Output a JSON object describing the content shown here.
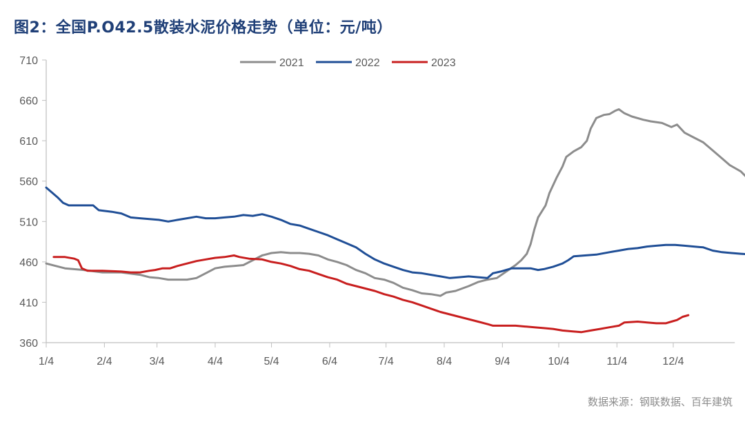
{
  "title": "图2：全国P.O42.5散装水泥价格走势（单位：元/吨）",
  "source": "数据来源：钢联数据、百年建筑",
  "colors": {
    "2021": "#8c8c8c",
    "2022": "#1f4e96",
    "2023": "#c81e1e",
    "axis": "#bfbfbf",
    "title": "#1f3f77"
  },
  "chart_data": {
    "type": "line",
    "title": "全国P.O42.5散装水泥价格走势（单位：元/吨）",
    "xlabel": "",
    "ylabel": "元/吨",
    "ylim": [
      360,
      710
    ],
    "yticks": [
      360,
      410,
      460,
      510,
      560,
      610,
      660,
      710
    ],
    "xticks": [
      {
        "label": "1/4",
        "day": 0
      },
      {
        "label": "2/4",
        "day": 31
      },
      {
        "label": "3/4",
        "day": 59
      },
      {
        "label": "4/4",
        "day": 90
      },
      {
        "label": "5/4",
        "day": 120
      },
      {
        "label": "6/4",
        "day": 151
      },
      {
        "label": "7/4",
        "day": 181
      },
      {
        "label": "8/4",
        "day": 212
      },
      {
        "label": "9/4",
        "day": 243
      },
      {
        "label": "10/4",
        "day": 273
      },
      {
        "label": "11/4",
        "day": 304
      },
      {
        "label": "12/4",
        "day": 334
      }
    ],
    "xmax_day": 362,
    "grid": false,
    "legend_position": "top-center",
    "series": [
      {
        "name": "2021",
        "points": [
          [
            0,
            458
          ],
          [
            5,
            455
          ],
          [
            10,
            452
          ],
          [
            20,
            450
          ],
          [
            30,
            447
          ],
          [
            40,
            447
          ],
          [
            50,
            444
          ],
          [
            55,
            441
          ],
          [
            60,
            440
          ],
          [
            65,
            438
          ],
          [
            75,
            438
          ],
          [
            80,
            440
          ],
          [
            85,
            446
          ],
          [
            90,
            452
          ],
          [
            95,
            454
          ],
          [
            100,
            455
          ],
          [
            105,
            456
          ],
          [
            110,
            462
          ],
          [
            115,
            468
          ],
          [
            120,
            471
          ],
          [
            125,
            472
          ],
          [
            130,
            471
          ],
          [
            135,
            471
          ],
          [
            140,
            470
          ],
          [
            145,
            468
          ],
          [
            150,
            463
          ],
          [
            155,
            460
          ],
          [
            160,
            456
          ],
          [
            165,
            450
          ],
          [
            170,
            446
          ],
          [
            175,
            440
          ],
          [
            180,
            438
          ],
          [
            185,
            434
          ],
          [
            190,
            428
          ],
          [
            195,
            425
          ],
          [
            200,
            421
          ],
          [
            205,
            420
          ],
          [
            210,
            418
          ],
          [
            213,
            422
          ],
          [
            218,
            424
          ],
          [
            225,
            430
          ],
          [
            230,
            435
          ],
          [
            235,
            438
          ],
          [
            240,
            440
          ],
          [
            245,
            448
          ],
          [
            250,
            456
          ],
          [
            253,
            462
          ],
          [
            256,
            470
          ],
          [
            258,
            482
          ],
          [
            260,
            500
          ],
          [
            262,
            515
          ],
          [
            266,
            530
          ],
          [
            268,
            545
          ],
          [
            272,
            565
          ],
          [
            275,
            578
          ],
          [
            277,
            590
          ],
          [
            281,
            597
          ],
          [
            285,
            602
          ],
          [
            288,
            610
          ],
          [
            290,
            625
          ],
          [
            293,
            638
          ],
          [
            297,
            642
          ],
          [
            300,
            643
          ],
          [
            303,
            647
          ],
          [
            305,
            649
          ],
          [
            308,
            644
          ],
          [
            312,
            640
          ],
          [
            318,
            636
          ],
          [
            322,
            634
          ],
          [
            328,
            632
          ],
          [
            333,
            627
          ],
          [
            336,
            630
          ],
          [
            340,
            620
          ],
          [
            345,
            614
          ],
          [
            350,
            608
          ],
          [
            353,
            602
          ],
          [
            356,
            596
          ],
          [
            360,
            588
          ],
          [
            364,
            580
          ],
          [
            367,
            576
          ],
          [
            370,
            572
          ],
          [
            373,
            565
          ],
          [
            376,
            558
          ]
        ]
      },
      {
        "name": "2022",
        "points": [
          [
            0,
            552
          ],
          [
            3,
            546
          ],
          [
            6,
            540
          ],
          [
            9,
            533
          ],
          [
            12,
            530
          ],
          [
            20,
            530
          ],
          [
            25,
            530
          ],
          [
            28,
            524
          ],
          [
            35,
            522
          ],
          [
            40,
            520
          ],
          [
            45,
            515
          ],
          [
            50,
            514
          ],
          [
            55,
            513
          ],
          [
            60,
            512
          ],
          [
            65,
            510
          ],
          [
            70,
            512
          ],
          [
            75,
            514
          ],
          [
            80,
            516
          ],
          [
            85,
            514
          ],
          [
            90,
            514
          ],
          [
            95,
            515
          ],
          [
            100,
            516
          ],
          [
            105,
            518
          ],
          [
            110,
            517
          ],
          [
            115,
            519
          ],
          [
            120,
            516
          ],
          [
            125,
            512
          ],
          [
            130,
            507
          ],
          [
            135,
            505
          ],
          [
            140,
            501
          ],
          [
            145,
            497
          ],
          [
            150,
            493
          ],
          [
            155,
            488
          ],
          [
            160,
            483
          ],
          [
            165,
            478
          ],
          [
            170,
            470
          ],
          [
            175,
            463
          ],
          [
            180,
            458
          ],
          [
            185,
            454
          ],
          [
            190,
            450
          ],
          [
            195,
            447
          ],
          [
            200,
            446
          ],
          [
            205,
            444
          ],
          [
            210,
            442
          ],
          [
            215,
            440
          ],
          [
            220,
            441
          ],
          [
            225,
            442
          ],
          [
            230,
            441
          ],
          [
            235,
            440
          ],
          [
            238,
            446
          ],
          [
            242,
            448
          ],
          [
            248,
            452
          ],
          [
            253,
            452
          ],
          [
            258,
            452
          ],
          [
            262,
            450
          ],
          [
            265,
            451
          ],
          [
            270,
            454
          ],
          [
            275,
            458
          ],
          [
            278,
            462
          ],
          [
            281,
            467
          ],
          [
            287,
            468
          ],
          [
            293,
            469
          ],
          [
            300,
            472
          ],
          [
            305,
            474
          ],
          [
            310,
            476
          ],
          [
            315,
            477
          ],
          [
            320,
            479
          ],
          [
            325,
            480
          ],
          [
            330,
            481
          ],
          [
            335,
            481
          ],
          [
            340,
            480
          ],
          [
            345,
            479
          ],
          [
            350,
            478
          ],
          [
            355,
            474
          ],
          [
            360,
            472
          ],
          [
            365,
            471
          ],
          [
            370,
            470
          ],
          [
            376,
            469
          ]
        ]
      },
      {
        "name": "2023",
        "points": [
          [
            4,
            466
          ],
          [
            10,
            466
          ],
          [
            15,
            464
          ],
          [
            17,
            462
          ],
          [
            19,
            452
          ],
          [
            22,
            449
          ],
          [
            30,
            449
          ],
          [
            40,
            448
          ],
          [
            45,
            447
          ],
          [
            50,
            447
          ],
          [
            55,
            449
          ],
          [
            58,
            450
          ],
          [
            62,
            452
          ],
          [
            66,
            452
          ],
          [
            70,
            455
          ],
          [
            75,
            458
          ],
          [
            80,
            461
          ],
          [
            85,
            463
          ],
          [
            90,
            465
          ],
          [
            95,
            466
          ],
          [
            100,
            468
          ],
          [
            103,
            466
          ],
          [
            108,
            464
          ],
          [
            115,
            463
          ],
          [
            120,
            460
          ],
          [
            125,
            458
          ],
          [
            130,
            455
          ],
          [
            135,
            451
          ],
          [
            140,
            449
          ],
          [
            145,
            445
          ],
          [
            150,
            441
          ],
          [
            155,
            438
          ],
          [
            160,
            433
          ],
          [
            165,
            430
          ],
          [
            170,
            427
          ],
          [
            175,
            424
          ],
          [
            180,
            420
          ],
          [
            185,
            417
          ],
          [
            190,
            413
          ],
          [
            195,
            410
          ],
          [
            200,
            406
          ],
          [
            205,
            402
          ],
          [
            210,
            398
          ],
          [
            215,
            395
          ],
          [
            220,
            392
          ],
          [
            225,
            389
          ],
          [
            230,
            386
          ],
          [
            235,
            383
          ],
          [
            238,
            381
          ],
          [
            245,
            381
          ],
          [
            250,
            381
          ],
          [
            255,
            380
          ],
          [
            260,
            379
          ],
          [
            265,
            378
          ],
          [
            270,
            377
          ],
          [
            275,
            375
          ],
          [
            280,
            374
          ],
          [
            285,
            373
          ],
          [
            290,
            375
          ],
          [
            295,
            377
          ],
          [
            300,
            379
          ],
          [
            305,
            381
          ],
          [
            308,
            385
          ],
          [
            315,
            386
          ],
          [
            320,
            385
          ],
          [
            325,
            384
          ],
          [
            330,
            384
          ],
          [
            333,
            386
          ],
          [
            336,
            388
          ],
          [
            339,
            392
          ],
          [
            342,
            394
          ]
        ]
      }
    ]
  }
}
